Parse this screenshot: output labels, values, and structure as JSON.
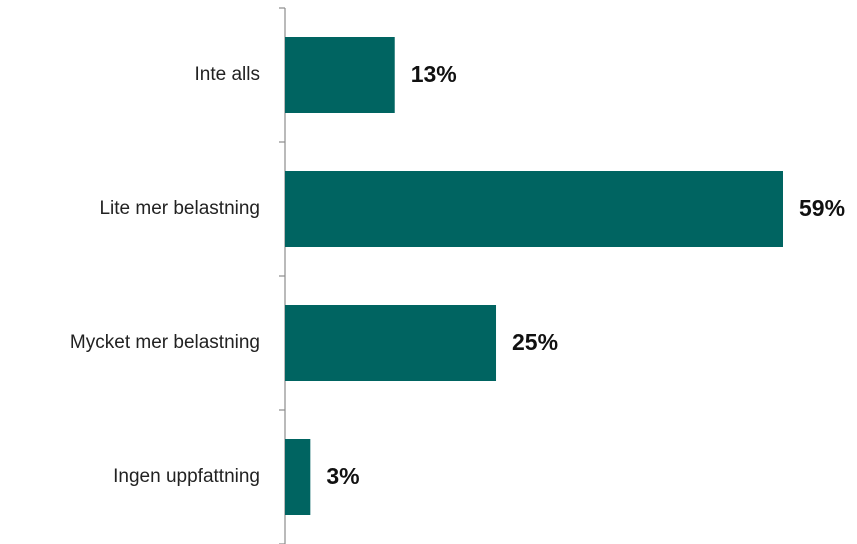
{
  "chart_data": {
    "type": "bar",
    "orientation": "horizontal",
    "categories": [
      "Inte alls",
      "Lite mer belastning",
      "Mycket mer belastning",
      "Ingen uppfattning"
    ],
    "values": [
      13,
      59,
      25,
      3
    ],
    "value_labels": [
      "13%",
      "59%",
      "25%",
      "3%"
    ],
    "unit": "%",
    "title": "",
    "xlabel": "",
    "ylabel": "",
    "xlim": [
      0,
      59
    ],
    "grid": false,
    "legend": "none",
    "bar_color": "#006461"
  }
}
